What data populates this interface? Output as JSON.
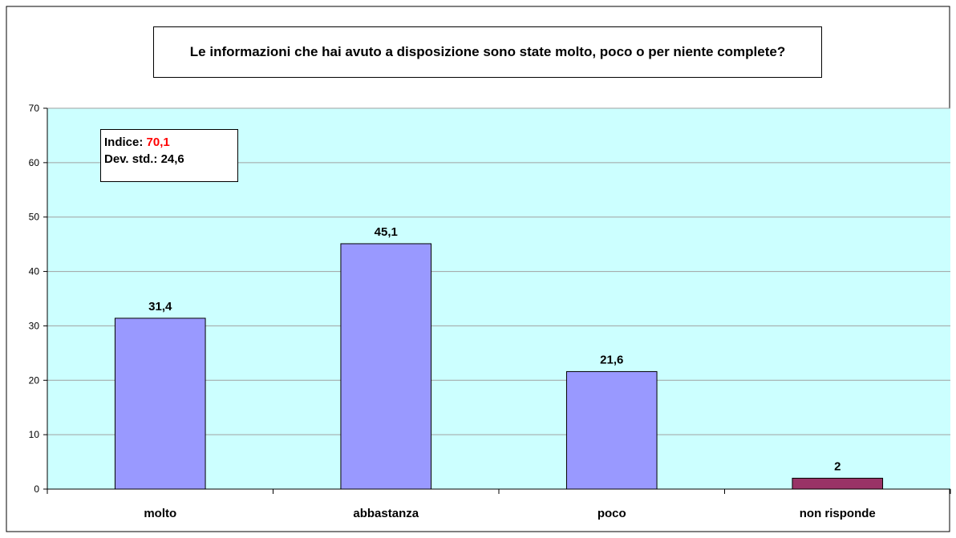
{
  "chart_data": {
    "type": "bar",
    "title": "Le informazioni che hai avuto a disposizione sono state molto, poco o per niente complete?",
    "xlabel": "",
    "ylabel": "",
    "ylim": [
      0,
      70
    ],
    "y_ticks": [
      0,
      10,
      20,
      30,
      40,
      50,
      60,
      70
    ],
    "grid": true,
    "categories": [
      "molto",
      "abbastanza",
      "poco",
      "non risponde"
    ],
    "values": [
      31.4,
      45.1,
      21.6,
      2
    ],
    "value_labels": [
      "31,4",
      "45,1",
      "21,6",
      "2"
    ],
    "bar_colors": [
      "#9999ff",
      "#9999ff",
      "#9999ff",
      "#993366"
    ],
    "plot_background": "#ccffff",
    "stats_box": {
      "index_label": "Indice:",
      "index_value": "70,1",
      "index_value_color": "#ff0000",
      "dev_label": "Dev. std.:",
      "dev_value": "24,6"
    }
  }
}
